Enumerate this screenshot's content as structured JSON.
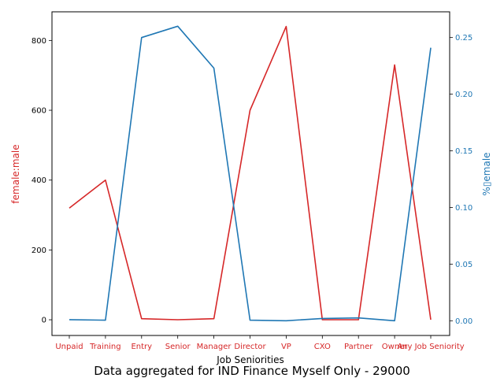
{
  "chart_data": {
    "type": "line",
    "categories": [
      "Unpaid",
      "Training",
      "Entry",
      "Senior",
      "Manager",
      "Director",
      "VP",
      "CXO",
      "Partner",
      "Owner",
      "Any Job Seniority"
    ],
    "xlabel": "Job Seniorities",
    "ylabel_left": "female:male",
    "ylabel_right": "%▯emale",
    "footer": "Data aggregated for IND Finance Myself Only - 29000",
    "left_axis": {
      "ylim": [
        -45,
        882
      ],
      "ticks": [
        0,
        200,
        400,
        600,
        800
      ],
      "color": "#d62728"
    },
    "right_axis": {
      "ylim": [
        -0.013,
        0.2727
      ],
      "ticks": [
        0.0,
        0.05,
        0.1,
        0.15,
        0.2,
        0.25
      ],
      "tick_labels": [
        "0.00",
        "0.05",
        "0.10",
        "0.15",
        "0.20",
        "0.25"
      ],
      "color": "#1f77b4"
    },
    "grid": false,
    "series": [
      {
        "axis": "left",
        "color": "#d62728",
        "values": [
          320,
          400,
          3,
          0,
          3,
          600,
          840,
          0,
          0,
          730,
          0
        ]
      },
      {
        "axis": "right",
        "color": "#1f77b4",
        "values": [
          0.001,
          0.0005,
          0.25,
          0.26,
          0.223,
          0.0005,
          0.0,
          0.002,
          0.0025,
          0.0,
          0.241
        ]
      }
    ]
  }
}
